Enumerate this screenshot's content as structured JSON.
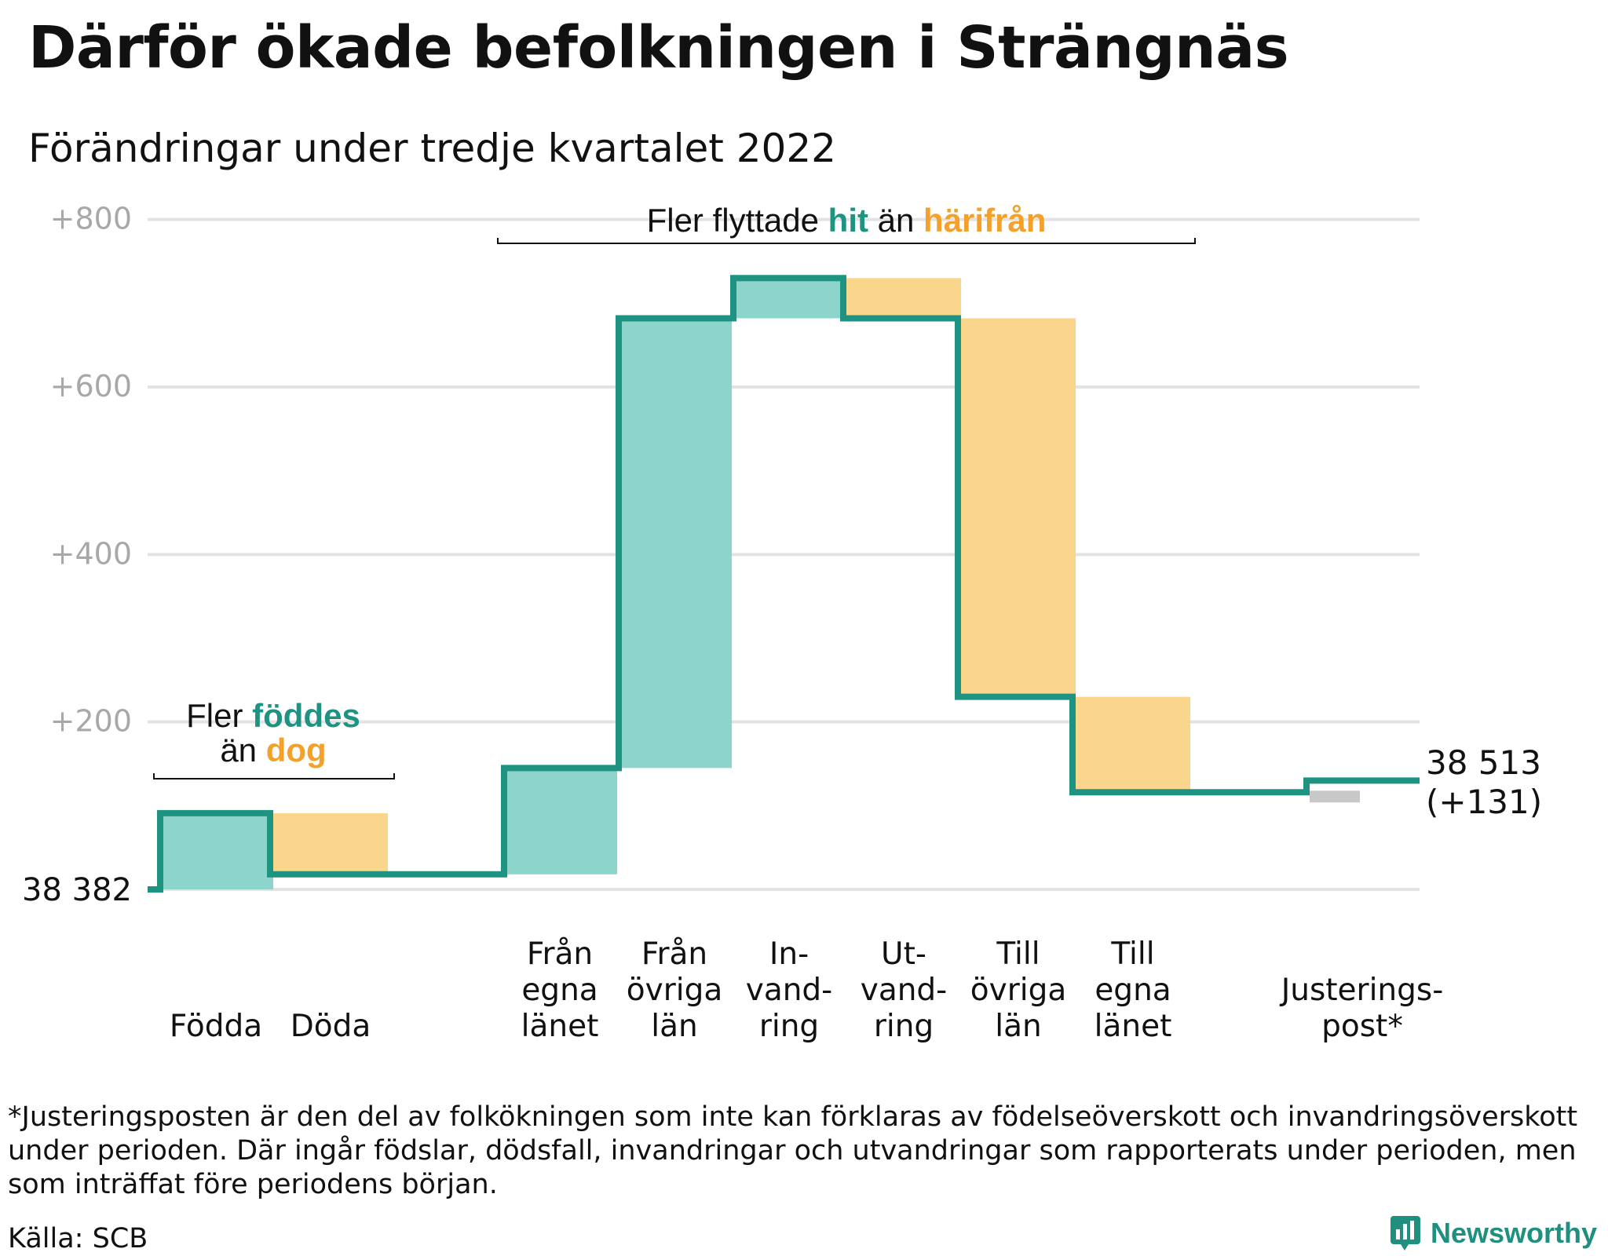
{
  "title": "Därför ökade befolkningen i Strängnäs",
  "subtitle": "Förändringar under tredje kvartalet 2022",
  "note": "*Justeringsposten är den del av folkökningen som inte kan förklaras av födelseöverskott och invandringsöverskott under perioden. Där ingår födslar, dödsfall, invandringar och utvandringar som rapporterats under perioden, men som inträffat före periodens början.",
  "source": "Källa: SCB",
  "brand": "Newsworthy",
  "colors": {
    "inflow": "#8dd4cb",
    "outflow": "#fad58c",
    "adjust": "#c8c8c8",
    "line": "#1f9382",
    "teal_text": "#1f9382",
    "orange_text": "#f3a12a",
    "grid": "#e3e3e3",
    "tick": "#a8a8a8"
  },
  "chart_data": {
    "type": "waterfall",
    "start_label": "38 382",
    "end_label": [
      "38 513",
      "(+131)"
    ],
    "y_ticks": [
      "+200",
      "+400",
      "+600",
      "+800"
    ],
    "y_tick_values": [
      200,
      400,
      600,
      800
    ],
    "ylim": [
      0,
      820
    ],
    "steps": [
      {
        "label": [
          "Födda"
        ],
        "value": 91,
        "kind": "inflow"
      },
      {
        "label": [
          "Döda"
        ],
        "value": -73,
        "kind": "outflow"
      },
      {
        "label": [
          "Från",
          "egna",
          "länet"
        ],
        "value": 127,
        "kind": "inflow"
      },
      {
        "label": [
          "Från",
          "övriga",
          "län"
        ],
        "value": 537,
        "kind": "inflow"
      },
      {
        "label": [
          "In-",
          "vand-",
          "ring"
        ],
        "value": 48,
        "kind": "inflow"
      },
      {
        "label": [
          "Ut-",
          "vand-",
          "ring"
        ],
        "value": -48,
        "kind": "outflow"
      },
      {
        "label": [
          "Till",
          "övriga",
          "län"
        ],
        "value": -452,
        "kind": "outflow"
      },
      {
        "label": [
          "Till",
          "egna",
          "länet"
        ],
        "value": -114,
        "kind": "outflow"
      },
      {
        "label": [
          "Justerings-",
          "post*"
        ],
        "value": 14,
        "kind": "adjust"
      }
    ],
    "groups": [
      {
        "text": [
          {
            "t": "Fler ",
            "c": "dark"
          },
          {
            "t": "föddes",
            "c": "teal"
          }
        ],
        "text2": [
          {
            "t": "än ",
            "c": "dark"
          },
          {
            "t": "dog",
            "c": "orange"
          }
        ]
      },
      {
        "text": [
          {
            "t": "Fler flyttade ",
            "c": "dark"
          },
          {
            "t": "hit",
            "c": "teal"
          },
          {
            "t": " än ",
            "c": "dark"
          },
          {
            "t": "härifrån",
            "c": "orange"
          }
        ]
      }
    ]
  }
}
